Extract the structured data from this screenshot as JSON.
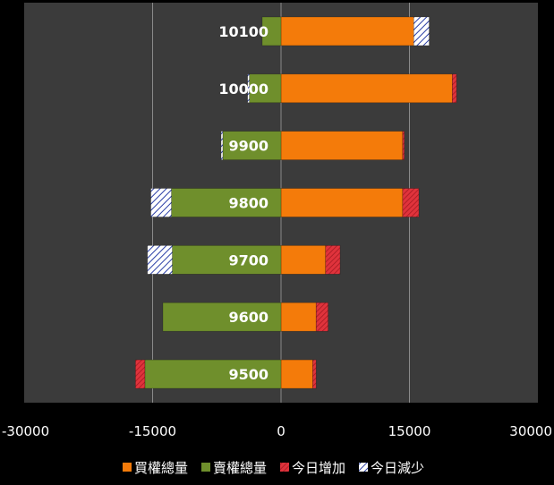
{
  "chart_data": {
    "type": "bar",
    "orientation": "horizontal",
    "stacked": true,
    "categories": [
      "10100",
      "10000",
      "9900",
      "9800",
      "9700",
      "9600",
      "9500"
    ],
    "series": [
      {
        "name": "買權總量",
        "color": "#f47b0a",
        "values": [
          15500,
          20000,
          14200,
          14200,
          5200,
          4100,
          3700
        ],
        "pattern": "solid"
      },
      {
        "name": "今日增加",
        "color": "#e0333c",
        "values": [
          0,
          500,
          200,
          1900,
          1700,
          1400,
          400
        ],
        "pattern": "hatch"
      },
      {
        "name": "今日減少",
        "color": "#ffffff",
        "values": [
          1800,
          0,
          0,
          0,
          0,
          0,
          0
        ],
        "pattern": "hatch-blue"
      },
      {
        "name": "賣權總量",
        "color": "#6f8f2c",
        "values": [
          -2200,
          -3700,
          -6800,
          -12800,
          -12700,
          -13800,
          -15900
        ],
        "pattern": "solid"
      },
      {
        "name": "今日增加",
        "color": "#e0333c",
        "values": [
          0,
          0,
          0,
          0,
          0,
          0,
          -1100
        ],
        "pattern": "hatch"
      },
      {
        "name": "今日減少",
        "color": "#ffffff",
        "values": [
          0,
          -200,
          -200,
          -2400,
          -2900,
          0,
          0
        ],
        "pattern": "hatch-blue"
      }
    ],
    "xlim": [
      -30000,
      30000
    ],
    "x_ticks": [
      -30000,
      -15000,
      0,
      15000,
      30000
    ],
    "x_tick_labels": [
      "-30000",
      "-15000",
      "0",
      "15000",
      "30000"
    ],
    "grid": true,
    "legend_position": "bottom",
    "legend": [
      {
        "label": "買權總量",
        "color": "#f47b0a",
        "pattern": "solid"
      },
      {
        "label": "賣權總量",
        "color": "#6f8f2c",
        "pattern": "solid"
      },
      {
        "label": "今日增加",
        "color": "#e0333c",
        "pattern": "hatch"
      },
      {
        "label": "今日減少",
        "color": "#ffffff",
        "pattern": "hatch-blue"
      }
    ],
    "title": "",
    "xlabel": "",
    "ylabel": ""
  }
}
